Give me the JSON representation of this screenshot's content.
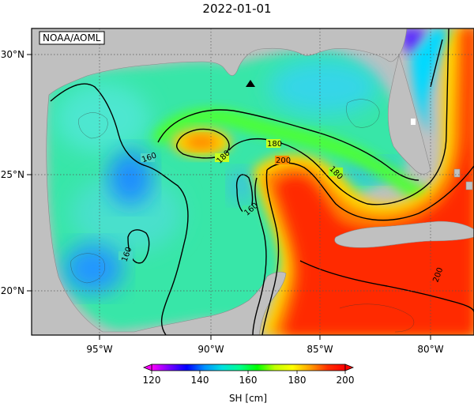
{
  "title": "2022-01-01",
  "credit": "NOAA/AOML",
  "map": {
    "lon_range": [
      -98,
      -78
    ],
    "lat_range": [
      18,
      31
    ],
    "lon_ticks": [
      {
        "value": -95,
        "label": "95°W"
      },
      {
        "value": -90,
        "label": "90°W"
      },
      {
        "value": -85,
        "label": "85°W"
      },
      {
        "value": -80,
        "label": "80°W"
      }
    ],
    "lat_ticks": [
      {
        "value": 20,
        "label": "20°N"
      },
      {
        "value": 25,
        "label": "25°N"
      },
      {
        "value": 30,
        "label": "30°N"
      }
    ],
    "marker": {
      "lon": -88.4,
      "lat": 28.6,
      "shape": "triangle"
    },
    "contour_labels": [
      "160",
      "160",
      "160",
      "180",
      "180",
      "180",
      "200",
      "200"
    ],
    "land_color": "#c0c0c0",
    "grid": true
  },
  "colorbar": {
    "title": "SH [cm]",
    "ticks": [
      "120",
      "140",
      "160",
      "180",
      "200"
    ],
    "range": [
      120,
      200
    ],
    "colors": [
      "#ff00ff",
      "#7a00ff",
      "#0000ff",
      "#0090ff",
      "#00e0e0",
      "#00ff90",
      "#00ff00",
      "#c0ff00",
      "#ffff00",
      "#ffa000",
      "#ff3000",
      "#ff0000"
    ]
  }
}
